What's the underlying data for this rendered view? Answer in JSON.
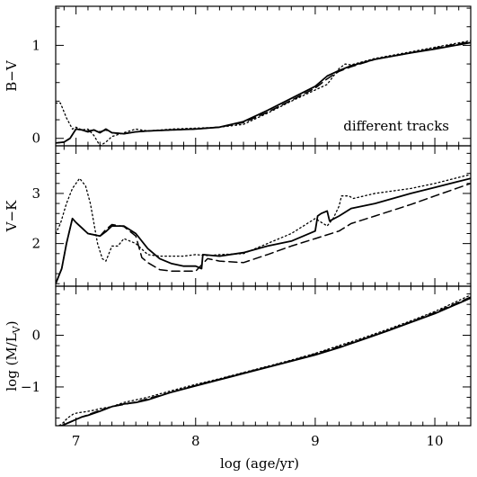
{
  "chart_data": [
    {
      "type": "line",
      "ylabel": "B−V",
      "xlim": [
        6.83,
        10.3
      ],
      "ylim": [
        -0.08,
        1.42
      ],
      "yticks": [
        0,
        1
      ],
      "ytick_labels": [
        "0",
        "1"
      ],
      "annotation": "different tracks",
      "series": [
        {
          "style": "solid",
          "x": [
            6.83,
            6.9,
            6.95,
            7.0,
            7.05,
            7.1,
            7.15,
            7.2,
            7.25,
            7.3,
            7.4,
            7.5,
            7.6,
            7.8,
            8.0,
            8.2,
            8.4,
            8.6,
            8.8,
            9.0,
            9.1,
            9.2,
            9.3,
            9.5,
            9.8,
            10.0,
            10.3
          ],
          "y": [
            -0.05,
            -0.04,
            0.0,
            0.1,
            0.09,
            0.07,
            0.09,
            0.06,
            0.1,
            0.06,
            0.05,
            0.07,
            0.08,
            0.09,
            0.1,
            0.12,
            0.18,
            0.3,
            0.43,
            0.56,
            0.67,
            0.73,
            0.78,
            0.85,
            0.92,
            0.96,
            1.03
          ]
        },
        {
          "style": "dashed",
          "x": [
            6.83,
            6.9,
            6.95,
            7.0,
            7.05,
            7.1,
            7.15,
            7.2,
            7.25,
            7.3,
            7.4,
            7.5,
            7.6,
            7.8,
            8.0,
            8.2,
            8.4,
            8.6,
            8.8,
            9.0,
            9.1,
            9.2,
            9.3,
            9.5,
            9.8,
            10.0,
            10.3
          ],
          "y": [
            -0.05,
            -0.04,
            0.0,
            0.1,
            0.09,
            0.08,
            0.09,
            0.07,
            0.09,
            0.06,
            0.05,
            0.07,
            0.08,
            0.09,
            0.1,
            0.12,
            0.17,
            0.28,
            0.41,
            0.54,
            0.64,
            0.72,
            0.77,
            0.85,
            0.92,
            0.97,
            1.04
          ]
        },
        {
          "style": "dotted",
          "x": [
            6.83,
            6.87,
            6.92,
            6.97,
            7.0,
            7.05,
            7.1,
            7.15,
            7.2,
            7.25,
            7.3,
            7.4,
            7.5,
            7.6,
            7.8,
            8.0,
            8.2,
            8.4,
            8.6,
            8.8,
            9.0,
            9.1,
            9.2,
            9.25,
            9.3,
            9.5,
            9.8,
            10.0,
            10.3
          ],
          "y": [
            0.38,
            0.38,
            0.22,
            0.1,
            0.12,
            0.09,
            0.1,
            0.03,
            -0.08,
            -0.04,
            0.02,
            0.06,
            0.1,
            0.08,
            0.1,
            0.11,
            0.12,
            0.15,
            0.27,
            0.4,
            0.52,
            0.58,
            0.75,
            0.8,
            0.79,
            0.86,
            0.93,
            0.98,
            1.05
          ]
        }
      ]
    },
    {
      "type": "line",
      "ylabel": "V−K",
      "xlim": [
        6.83,
        10.3
      ],
      "ylim": [
        1.15,
        3.95
      ],
      "yticks": [
        2,
        3
      ],
      "ytick_labels": [
        "2",
        "3"
      ],
      "series": [
        {
          "style": "solid",
          "x": [
            6.83,
            6.88,
            6.92,
            6.97,
            7.0,
            7.1,
            7.2,
            7.25,
            7.3,
            7.4,
            7.5,
            7.6,
            7.7,
            7.8,
            7.9,
            8.0,
            8.05,
            8.06,
            8.2,
            8.4,
            8.6,
            8.8,
            9.0,
            9.02,
            9.05,
            9.1,
            9.12,
            9.2,
            9.3,
            9.5,
            9.8,
            10.0,
            10.3
          ],
          "y": [
            1.2,
            1.5,
            2.0,
            2.5,
            2.42,
            2.2,
            2.15,
            2.24,
            2.35,
            2.35,
            2.2,
            1.9,
            1.7,
            1.6,
            1.55,
            1.55,
            1.5,
            1.78,
            1.75,
            1.82,
            1.95,
            2.05,
            2.25,
            2.55,
            2.6,
            2.65,
            2.45,
            2.55,
            2.7,
            2.8,
            3.0,
            3.12,
            3.3
          ]
        },
        {
          "style": "dashed",
          "x": [
            6.83,
            6.88,
            6.92,
            6.97,
            7.0,
            7.1,
            7.2,
            7.25,
            7.3,
            7.4,
            7.5,
            7.55,
            7.6,
            7.7,
            7.8,
            8.0,
            8.1,
            8.2,
            8.4,
            8.6,
            8.8,
            9.0,
            9.2,
            9.3,
            9.5,
            9.8,
            10.0,
            10.3
          ],
          "y": [
            1.2,
            1.5,
            2.0,
            2.5,
            2.42,
            2.2,
            2.15,
            2.28,
            2.38,
            2.34,
            2.15,
            1.72,
            1.62,
            1.48,
            1.45,
            1.45,
            1.7,
            1.65,
            1.62,
            1.78,
            1.95,
            2.1,
            2.25,
            2.4,
            2.55,
            2.78,
            2.95,
            3.2
          ]
        },
        {
          "style": "dotted",
          "x": [
            6.83,
            6.87,
            6.92,
            6.97,
            7.03,
            7.08,
            7.12,
            7.18,
            7.22,
            7.25,
            7.3,
            7.35,
            7.4,
            7.5,
            7.6,
            7.7,
            7.8,
            7.9,
            8.0,
            8.1,
            8.2,
            8.4,
            8.6,
            8.8,
            9.0,
            9.1,
            9.15,
            9.2,
            9.22,
            9.28,
            9.32,
            9.5,
            9.8,
            10.0,
            10.3
          ],
          "y": [
            2.2,
            2.4,
            2.8,
            3.1,
            3.3,
            3.15,
            2.8,
            2.0,
            1.7,
            1.65,
            1.95,
            1.95,
            2.1,
            2.0,
            1.78,
            1.75,
            1.75,
            1.75,
            1.78,
            1.76,
            1.78,
            1.8,
            2.0,
            2.2,
            2.5,
            2.35,
            2.5,
            2.75,
            2.95,
            2.95,
            2.9,
            3.0,
            3.1,
            3.2,
            3.38
          ]
        }
      ]
    },
    {
      "type": "line",
      "ylabel": "log (M/L_V)",
      "xlabel": "log (age/yr)",
      "xlim": [
        6.83,
        10.3
      ],
      "ylim": [
        -1.75,
        0.95
      ],
      "yticks": [
        -1,
        0
      ],
      "ytick_labels": [
        "−1",
        "0"
      ],
      "xticks": [
        7,
        8,
        9,
        10
      ],
      "xtick_labels": [
        "7",
        "8",
        "9",
        "10"
      ],
      "series": [
        {
          "style": "solid",
          "x": [
            6.83,
            6.88,
            6.95,
            7.0,
            7.05,
            7.1,
            7.2,
            7.3,
            7.4,
            7.5,
            7.6,
            7.8,
            8.0,
            8.2,
            8.4,
            8.6,
            8.8,
            9.0,
            9.2,
            9.4,
            9.6,
            9.8,
            10.0,
            10.3
          ],
          "y": [
            -1.8,
            -1.75,
            -1.68,
            -1.63,
            -1.58,
            -1.55,
            -1.47,
            -1.38,
            -1.33,
            -1.3,
            -1.25,
            -1.1,
            -0.98,
            -0.86,
            -0.74,
            -0.62,
            -0.5,
            -0.38,
            -0.24,
            -0.08,
            0.08,
            0.25,
            0.42,
            0.72
          ]
        },
        {
          "style": "dashed",
          "x": [
            6.83,
            6.88,
            6.95,
            7.0,
            7.05,
            7.1,
            7.2,
            7.3,
            7.4,
            7.5,
            7.6,
            7.8,
            8.0,
            8.2,
            8.4,
            8.6,
            8.8,
            9.0,
            9.2,
            9.4,
            9.6,
            9.8,
            10.0,
            10.3
          ],
          "y": [
            -1.8,
            -1.75,
            -1.68,
            -1.63,
            -1.58,
            -1.54,
            -1.45,
            -1.38,
            -1.34,
            -1.29,
            -1.23,
            -1.1,
            -0.97,
            -0.85,
            -0.73,
            -0.61,
            -0.49,
            -0.36,
            -0.22,
            -0.07,
            0.09,
            0.26,
            0.44,
            0.74
          ]
        },
        {
          "style": "dotted",
          "x": [
            6.83,
            6.88,
            6.93,
            6.98,
            7.02,
            7.08,
            7.15,
            7.2,
            7.3,
            7.4,
            7.5,
            7.6,
            7.8,
            8.0,
            8.2,
            8.4,
            8.6,
            8.8,
            9.0,
            9.2,
            9.4,
            9.6,
            9.8,
            10.0,
            10.3
          ],
          "y": [
            -1.78,
            -1.72,
            -1.6,
            -1.52,
            -1.5,
            -1.48,
            -1.45,
            -1.42,
            -1.38,
            -1.3,
            -1.25,
            -1.2,
            -1.07,
            -0.95,
            -0.84,
            -0.72,
            -0.6,
            -0.48,
            -0.35,
            -0.2,
            -0.05,
            0.11,
            0.28,
            0.46,
            0.78
          ]
        }
      ]
    }
  ]
}
